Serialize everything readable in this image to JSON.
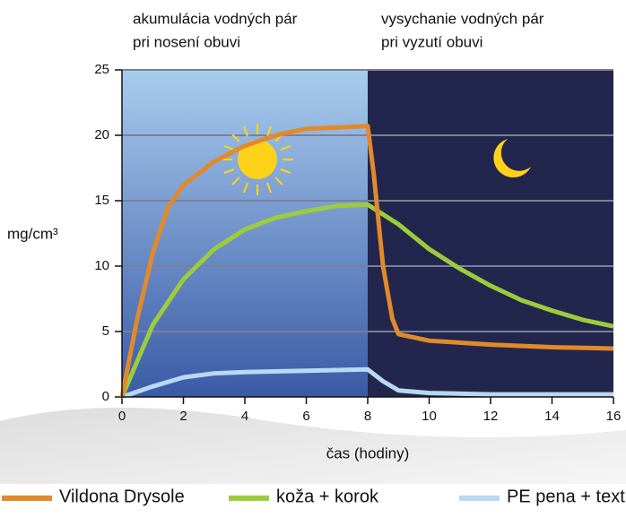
{
  "chart_data": {
    "type": "line",
    "annotations": [
      "akumulácia vodných pár",
      "pri nosení obuvi",
      "vysychanie vodných pár",
      "pri vyzutí obuvi"
    ],
    "y_label": "mg/cm³",
    "x_label": "čas (hodiny)",
    "xlim": [
      0,
      16
    ],
    "xticks": [
      0,
      2,
      4,
      6,
      8,
      10,
      12,
      14,
      16
    ],
    "ylim": [
      0,
      25
    ],
    "yticks": [
      0,
      5,
      10,
      15,
      20,
      25
    ],
    "grid": true,
    "regions": [
      {
        "from": 0,
        "to": 8,
        "color": "#a8ccee"
      },
      {
        "from": 8,
        "to": 16,
        "color": "#22264c"
      }
    ],
    "series": [
      {
        "name": "Vildona Drysole",
        "color": "#e08a2c",
        "x": [
          0,
          0.5,
          1,
          1.5,
          2,
          3,
          4,
          5,
          6,
          7,
          8,
          8.2,
          8.5,
          8.8,
          9,
          10,
          12,
          14,
          16
        ],
        "values": [
          0,
          6,
          11,
          14.5,
          16.2,
          18,
          19.2,
          20,
          20.5,
          20.6,
          20.7,
          17,
          10,
          6,
          4.8,
          4.3,
          4,
          3.8,
          3.7
        ]
      },
      {
        "name": "koža + korok",
        "color": "#9ccc3c",
        "x": [
          0,
          1,
          2,
          3,
          4,
          5,
          6,
          7,
          8,
          9,
          10,
          11,
          12,
          13,
          14,
          15,
          16
        ],
        "values": [
          0,
          5.5,
          9,
          11.3,
          12.8,
          13.7,
          14.2,
          14.6,
          14.7,
          13.2,
          11.3,
          9.8,
          8.5,
          7.4,
          6.6,
          5.9,
          5.4
        ]
      },
      {
        "name": "PE pena + textil",
        "color": "#b9d8f2",
        "x": [
          0,
          1,
          2,
          3,
          4,
          6,
          8,
          8.5,
          9,
          10,
          12,
          16
        ],
        "values": [
          0,
          0.8,
          1.5,
          1.8,
          1.9,
          2.0,
          2.1,
          1.2,
          0.5,
          0.3,
          0.2,
          0.2
        ]
      }
    ]
  }
}
